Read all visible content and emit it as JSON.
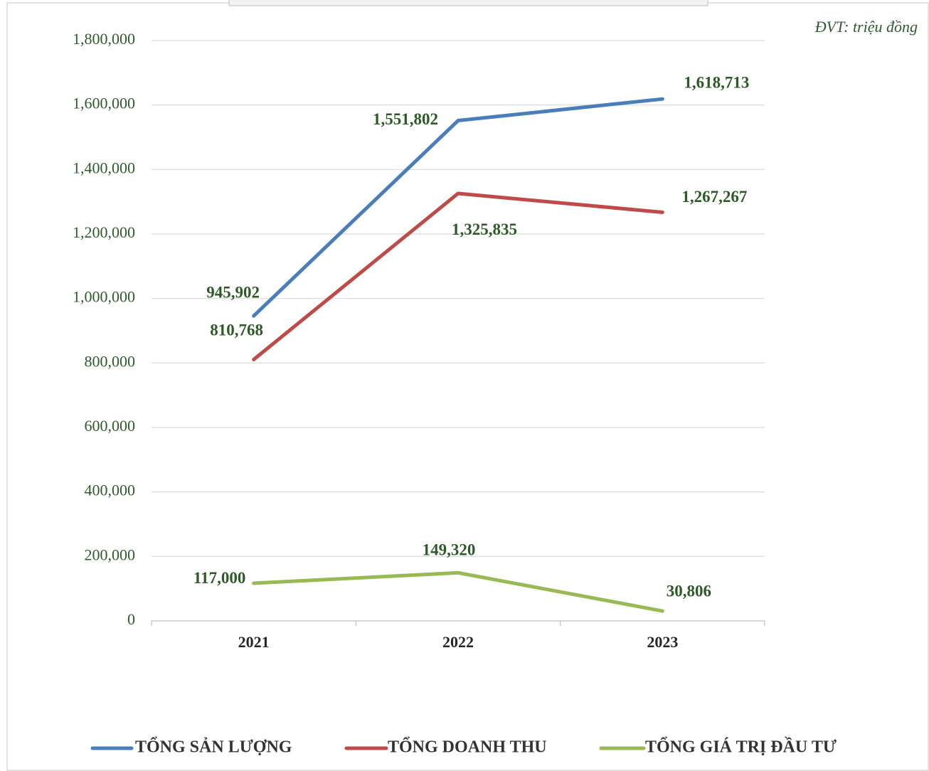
{
  "chart_data": {
    "type": "line",
    "annotation": "ĐVT: triệu đồng",
    "categories": [
      "2021",
      "2022",
      "2023"
    ],
    "series": [
      {
        "name": "TỔNG SẢN LƯỢNG",
        "color": "#4a7ebb",
        "values": [
          945902,
          1551802,
          1618713
        ],
        "value_labels": [
          "945,902",
          "1,551,802",
          "1,618,713"
        ]
      },
      {
        "name": "TỔNG DOANH THU",
        "color": "#be4b48",
        "values": [
          810768,
          1325835,
          1267267
        ],
        "value_labels": [
          "810,768",
          "1,325,835",
          "1,267,267"
        ]
      },
      {
        "name": "TỔNG GIÁ TRỊ ĐẦU TƯ",
        "color": "#98b954",
        "values": [
          117000,
          149320,
          30806
        ],
        "value_labels": [
          "117,000",
          "149,320",
          "30,806"
        ]
      }
    ],
    "ylim": [
      0,
      1800000
    ],
    "yticks": [
      0,
      {
        "value": 200000,
        "label": "200,000"
      },
      {
        "value": 400000,
        "label": "400,000"
      },
      {
        "value": 600000,
        "label": "600,000"
      },
      {
        "value": 800000,
        "label": "800,000"
      },
      {
        "value": 1000000,
        "label": "1,000,000"
      },
      {
        "value": 1200000,
        "label": "1,200,000"
      },
      {
        "value": 1400000,
        "label": "1,400,000"
      },
      {
        "value": 1600000,
        "label": "1,600,000"
      },
      {
        "value": 1800000,
        "label": "1,800,000"
      }
    ],
    "grid": true,
    "legend": "bottom"
  }
}
